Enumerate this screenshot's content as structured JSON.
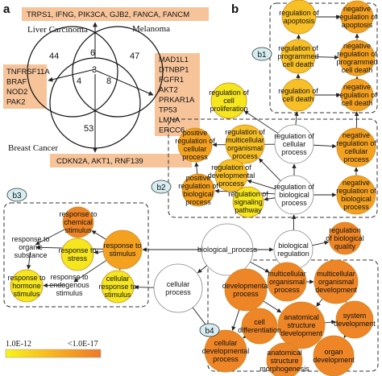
{
  "panels": {
    "a": "a",
    "b": "b"
  },
  "venn": {
    "sets": {
      "liver": "Liver Carcinoma",
      "melanoma": "Melanoma",
      "breast": "Breast Cancer"
    },
    "counts": {
      "liver_only": "44",
      "melanoma_only": "47",
      "breast_only": "53",
      "liver_melanoma": "6",
      "liver_breast": "4",
      "melanoma_breast": "8",
      "all": "3"
    },
    "gene_boxes": {
      "top": "TRPS1, IFNG, PIK3CA, GJB2, FANCA, FANCM",
      "right": [
        "MAD1L1",
        "DTNBP1",
        "FGFR1",
        "AKT2",
        "PRKAR1A",
        "TP53",
        "LMNA",
        "ERCC6"
      ],
      "left": [
        "TNFRSF11A",
        "BRAF",
        "NOD2",
        "PAK2"
      ],
      "bottom": "CDKN2A, AKT1, RNF139"
    },
    "colors": {
      "gene_box": "#f7c49a"
    }
  },
  "network": {
    "group_tags": {
      "b1": "b1",
      "b2": "b2",
      "b3": "b3",
      "b4": "b4"
    },
    "nodes": {
      "reg_apoptosis": [
        "regulation of",
        "apoptosis"
      ],
      "neg_reg_apoptosis": [
        "negative",
        "regulation of",
        "apoptosis"
      ],
      "reg_pcd": [
        "regulation of",
        "programmed",
        "cell death"
      ],
      "neg_reg_pcd": [
        "negative",
        "regulation of",
        "programmed",
        "cell death"
      ],
      "reg_cell_death": [
        "regulation of",
        "cell death"
      ],
      "neg_reg_cell_death": [
        "negative",
        "regulation of",
        "cell death"
      ],
      "reg_cell_prolif": [
        "regulation of",
        "cell",
        "proliferation"
      ],
      "pos_reg_cellular": [
        "positive",
        "regulation of",
        "cellular",
        "process"
      ],
      "reg_multicell": [
        "regulation of",
        "multicellular",
        "organismal",
        "process"
      ],
      "reg_cellular": [
        "regulation of",
        "cellular",
        "process"
      ],
      "neg_reg_cellular": [
        "negative",
        "regulation of",
        "cellular",
        "process"
      ],
      "reg_dev": [
        "regulation of",
        "developmental",
        "process"
      ],
      "pos_reg_bio": [
        "positive",
        "regulation of",
        "biological",
        "process"
      ],
      "reg_signaling": [
        "regulation of",
        "signaling",
        "pathway"
      ],
      "reg_bio": [
        "regulation of",
        "biological",
        "process"
      ],
      "neg_reg_bio": [
        "negative",
        "regulation of",
        "biological",
        "process"
      ],
      "resp_chem": [
        "response to",
        "chemical",
        "stimulus"
      ],
      "resp_organic": [
        "response to",
        "organic",
        "substance"
      ],
      "resp_stress": [
        "response to",
        "stress"
      ],
      "resp_stimulus": [
        "response to",
        "stimulus"
      ],
      "resp_endo": [
        "response to",
        "endogenous",
        "stimulus"
      ],
      "resp_hormone": [
        "response to",
        "hormone",
        "stimulus"
      ],
      "cell_resp": [
        "cellular",
        "response to",
        "stimulus"
      ],
      "bio_process": [
        "biological_process"
      ],
      "bio_reg": [
        "biological",
        "regulation"
      ],
      "reg_bio_quality": [
        "regulation",
        "of biological",
        "quality"
      ],
      "cellular_process": [
        "cellular",
        "process"
      ],
      "dev_process": [
        "developmental",
        "process"
      ],
      "multicell_dev": [
        "multicellular",
        "organismal",
        "development"
      ],
      "multicell_proc": [
        "multicellular",
        "organismal",
        "process"
      ],
      "anat_dev": [
        "anatomical",
        "structure",
        "development"
      ],
      "cell_diff": [
        "cell",
        "differentiation"
      ],
      "system_dev": [
        "system",
        "development"
      ],
      "cell_dev_proc": [
        "cellular",
        "developmental",
        "process"
      ],
      "anat_morph": [
        "anatomical",
        "structure",
        "morphogenesis"
      ],
      "organ_dev": [
        "organ",
        "development"
      ]
    }
  },
  "legend": {
    "low": "1.0E-12",
    "high": "<1.0E-17"
  },
  "colors": {
    "yellow": "#f5e61e",
    "light_orange": "#f8c027",
    "orange": "#f4a11f",
    "dark_orange": "#ee8526",
    "white": "#ffffff",
    "dash": "#333333",
    "tag_fill": "#d6eef2"
  }
}
